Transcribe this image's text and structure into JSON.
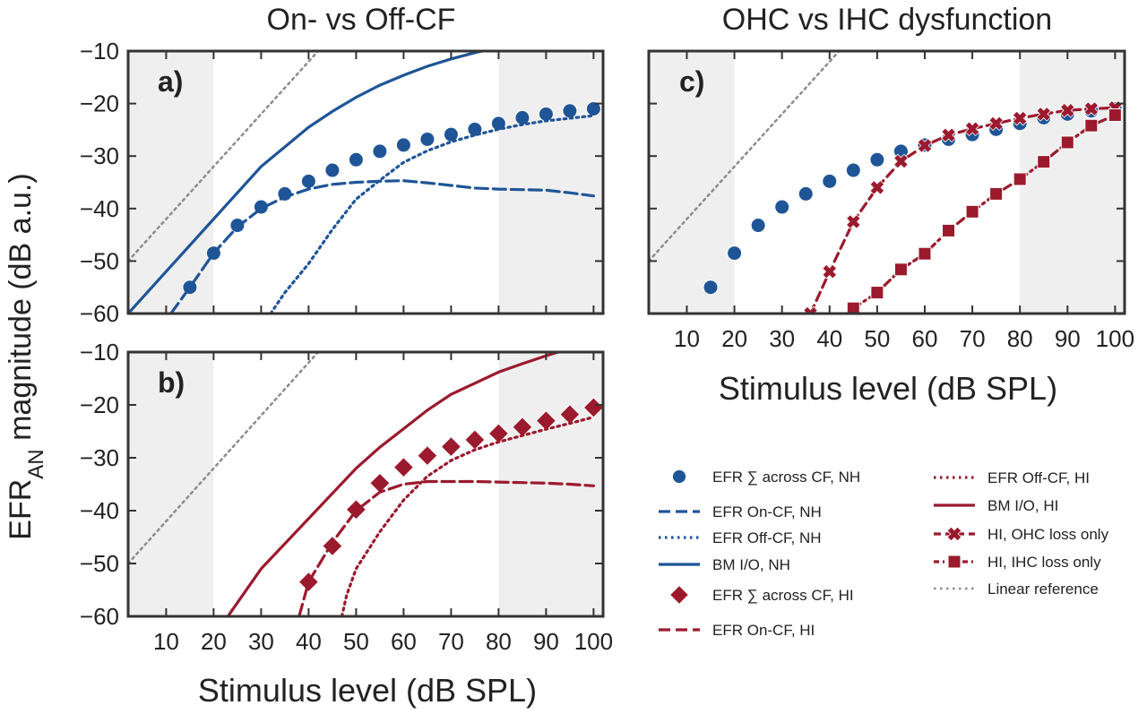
{
  "figure": {
    "title_left": "On- vs Off-CF",
    "title_right": "OHC vs IHC dysfunction",
    "ylabel_main": "EFR",
    "ylabel_sub": "AN",
    "ylabel_rest": " magnitude (dB a.u.)",
    "xlabel": "Stimulus level (dB SPL)",
    "panel_labels": [
      "a)",
      "b)",
      "c)"
    ],
    "colors": {
      "nh": "#1f5596",
      "hi": "#9b1a2e",
      "linear": "#8c8c8c",
      "shade": "#efefef",
      "axis": "#333333"
    }
  },
  "chart_data": [
    {
      "panel": "a)",
      "type": "line",
      "xlim": [
        2,
        102
      ],
      "ylim": [
        -60,
        -10
      ],
      "xticks": [
        10,
        20,
        30,
        40,
        50,
        60,
        70,
        80,
        90,
        100
      ],
      "xticklabels": [
        "10",
        "20",
        "30",
        "40",
        "50",
        "60",
        "70",
        "80",
        "90",
        "100"
      ],
      "yticks": [
        -60,
        -50,
        -40,
        -30,
        -20,
        -10
      ],
      "yticklabels": [
        "−60",
        "−50",
        "−40",
        "−30",
        "−20",
        "−10"
      ],
      "shaded_x": [
        [
          2,
          20
        ],
        [
          80,
          102
        ]
      ],
      "series": [
        {
          "name": "EFR ∑ across CF, NH",
          "style": "markers",
          "marker": "circle",
          "color": "nh",
          "x": [
            15,
            20,
            25,
            30,
            35,
            40,
            45,
            50,
            55,
            60,
            65,
            70,
            75,
            80,
            85,
            90,
            95,
            100
          ],
          "y": [
            -55,
            -48.5,
            -43.2,
            -39.7,
            -37.2,
            -34.8,
            -32.7,
            -30.7,
            -29.1,
            -27.9,
            -26.8,
            -25.9,
            -24.9,
            -23.8,
            -22.7,
            -22,
            -21.4,
            -21
          ]
        },
        {
          "name": "EFR On-CF, NH",
          "style": "dashed",
          "color": "nh",
          "x": [
            11,
            15,
            20,
            25,
            30,
            35,
            40,
            45,
            50,
            55,
            60,
            65,
            70,
            75,
            80,
            85,
            90,
            95,
            100
          ],
          "y": [
            -60,
            -55,
            -48.5,
            -43.5,
            -40,
            -37.8,
            -36.3,
            -35.4,
            -35,
            -34.8,
            -34.7,
            -35.1,
            -35.6,
            -36.1,
            -36.3,
            -36.4,
            -36.5,
            -37,
            -37.6
          ]
        },
        {
          "name": "EFR Off-CF, NH",
          "style": "dotted",
          "color": "nh",
          "x": [
            32,
            35,
            40,
            45,
            50,
            55,
            60,
            65,
            70,
            75,
            80,
            85,
            90,
            95,
            100
          ],
          "y": [
            -60,
            -56,
            -50.5,
            -44,
            -38.2,
            -34.6,
            -31.2,
            -29,
            -27.3,
            -26,
            -24.9,
            -24,
            -23.3,
            -22.8,
            -22.3
          ]
        },
        {
          "name": "BM I/O, NH",
          "style": "solid",
          "color": "nh",
          "x": [
            2,
            10,
            20,
            30,
            40,
            45,
            50,
            55,
            60,
            65,
            70,
            75,
            78
          ],
          "y": [
            -60,
            -52,
            -42,
            -32,
            -24.5,
            -21.5,
            -18.8,
            -16.5,
            -14.6,
            -12.9,
            -11.5,
            -10.3,
            -9.7
          ]
        },
        {
          "name": "Linear reference",
          "style": "dotted",
          "color": "linear",
          "x": [
            2,
            42
          ],
          "y": [
            -50,
            -10
          ]
        }
      ]
    },
    {
      "panel": "b)",
      "type": "line",
      "xlim": [
        2,
        102
      ],
      "ylim": [
        -60,
        -10
      ],
      "xticks": [
        10,
        20,
        30,
        40,
        50,
        60,
        70,
        80,
        90,
        100
      ],
      "xticklabels": [
        "10",
        "20",
        "30",
        "40",
        "50",
        "60",
        "70",
        "80",
        "90",
        "100"
      ],
      "yticks": [
        -60,
        -50,
        -40,
        -30,
        -20,
        -10
      ],
      "yticklabels": [
        "−60",
        "−50",
        "−40",
        "−30",
        "−20",
        "−10"
      ],
      "shaded_x": [
        [
          2,
          20
        ],
        [
          80,
          102
        ]
      ],
      "series": [
        {
          "name": "EFR ∑ across CF, HI",
          "style": "markers",
          "marker": "diamond",
          "color": "hi",
          "x": [
            40,
            45,
            50,
            55,
            60,
            65,
            70,
            75,
            80,
            85,
            90,
            95,
            100
          ],
          "y": [
            -53.5,
            -46.7,
            -39.8,
            -34.8,
            -31.8,
            -29.6,
            -27.9,
            -26.6,
            -25.4,
            -24.2,
            -23,
            -21.8,
            -20.5
          ]
        },
        {
          "name": "EFR On-CF, HI",
          "style": "dashed",
          "color": "hi",
          "x": [
            38,
            40,
            45,
            50,
            55,
            60,
            65,
            70,
            75,
            80,
            85,
            90,
            95,
            100
          ],
          "y": [
            -60,
            -53.5,
            -46,
            -40,
            -36.5,
            -35,
            -34.5,
            -34.5,
            -34.5,
            -34.6,
            -34.7,
            -34.8,
            -35,
            -35.3
          ]
        },
        {
          "name": "EFR Off-CF, HI",
          "style": "dotted",
          "color": "hi",
          "x": [
            47,
            48,
            50,
            55,
            60,
            65,
            70,
            75,
            80,
            85,
            90,
            95,
            100
          ],
          "y": [
            -60,
            -56,
            -51,
            -44,
            -38,
            -33.5,
            -30.5,
            -28.5,
            -27,
            -25.8,
            -24.6,
            -23.5,
            -22.3
          ]
        },
        {
          "name": "BM I/O, HI",
          "style": "solid",
          "color": "hi",
          "x": [
            23,
            30,
            40,
            50,
            55,
            60,
            65,
            70,
            75,
            80,
            85,
            90,
            94
          ],
          "y": [
            -60,
            -51,
            -41.5,
            -32,
            -28,
            -24.5,
            -21,
            -18,
            -15.9,
            -13.8,
            -12.2,
            -10.7,
            -9.6
          ]
        },
        {
          "name": "Linear reference",
          "style": "dotted",
          "color": "linear",
          "x": [
            2,
            42
          ],
          "y": [
            -50,
            -10
          ]
        }
      ]
    },
    {
      "panel": "c)",
      "type": "line",
      "xlim": [
        2,
        102
      ],
      "ylim": [
        -60,
        -10
      ],
      "xticks": [
        10,
        20,
        30,
        40,
        50,
        60,
        70,
        80,
        90,
        100
      ],
      "xticklabels": [
        "10",
        "20",
        "30",
        "40",
        "50",
        "60",
        "70",
        "80",
        "90",
        "100"
      ],
      "yticks": [
        -60,
        -50,
        -40,
        -30,
        -20,
        -10
      ],
      "yticklabels": [
        "",
        "",
        "",
        "",
        "",
        ""
      ],
      "shaded_x": [
        [
          2,
          20
        ],
        [
          80,
          102
        ]
      ],
      "series": [
        {
          "name": "EFR ∑ across CF, NH",
          "style": "markers",
          "marker": "circle",
          "color": "nh",
          "x": [
            15,
            20,
            25,
            30,
            35,
            40,
            45,
            50,
            55,
            60,
            65,
            70,
            75,
            80,
            85,
            90,
            95,
            100
          ],
          "y": [
            -55,
            -48.5,
            -43.2,
            -39.7,
            -37.2,
            -34.8,
            -32.7,
            -30.7,
            -29.1,
            -27.9,
            -26.8,
            -25.9,
            -24.9,
            -23.8,
            -22.7,
            -22,
            -21.4,
            -21
          ]
        },
        {
          "name": "HI, OHC loss only",
          "style": "dashed-markers",
          "marker": "cross",
          "color": "hi",
          "x": [
            36,
            40,
            45,
            50,
            55,
            60,
            65,
            70,
            75,
            80,
            85,
            90,
            95,
            100
          ],
          "y": [
            -60,
            -52,
            -42.5,
            -36,
            -31,
            -28,
            -26,
            -24.8,
            -23.8,
            -22.8,
            -22,
            -21.3,
            -21,
            -20.8
          ]
        },
        {
          "name": "HI, IHC loss only",
          "style": "dashdot-markers",
          "marker": "square",
          "color": "hi",
          "x": [
            45,
            50,
            55,
            60,
            65,
            70,
            75,
            80,
            85,
            90,
            95,
            100
          ],
          "y": [
            -59,
            -56,
            -51.6,
            -48.6,
            -44.2,
            -40.6,
            -37.2,
            -34.4,
            -31.1,
            -27.4,
            -24.2,
            -22.2
          ]
        },
        {
          "name": "Linear reference",
          "style": "dotted",
          "color": "linear",
          "x": [
            2,
            42
          ],
          "y": [
            -50,
            -10
          ]
        }
      ]
    }
  ],
  "legend": {
    "col1": [
      {
        "label": "EFR ∑ across CF, NH",
        "kind": "circle",
        "color": "nh"
      },
      {
        "label": "EFR On-CF, NH",
        "kind": "dashed",
        "color": "nh"
      },
      {
        "label": "EFR Off-CF, NH",
        "kind": "dotted",
        "color": "nh"
      },
      {
        "label": "BM I/O, NH",
        "kind": "solid",
        "color": "nh"
      },
      {
        "label": "EFR ∑ across CF, HI",
        "kind": "diamond",
        "color": "hi"
      },
      {
        "label": "EFR On-CF, HI",
        "kind": "dashed",
        "color": "hi"
      }
    ],
    "col2": [
      {
        "label": "EFR Off-CF, HI",
        "kind": "dotted",
        "color": "hi"
      },
      {
        "label": "BM I/O, HI",
        "kind": "solid",
        "color": "hi"
      },
      {
        "label": "HI, OHC loss only",
        "kind": "dashed-cross",
        "color": "hi"
      },
      {
        "label": "HI, IHC loss only",
        "kind": "dashdot-square",
        "color": "hi"
      },
      {
        "label": "Linear reference",
        "kind": "dotted",
        "color": "linear"
      }
    ]
  }
}
